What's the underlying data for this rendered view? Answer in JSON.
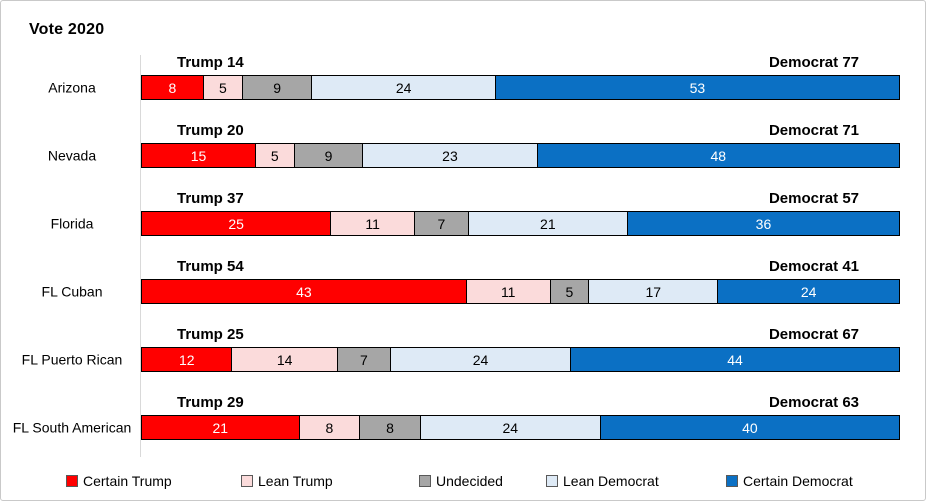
{
  "title": "Vote 2020",
  "colors": {
    "certain_trump": "#FF0000",
    "lean_trump": "#FBDBDB",
    "undecided": "#A6A6A6",
    "lean_democrat": "#DEEAF6",
    "certain_democrat": "#0B70C4",
    "segment_border": "#000000",
    "axis_line": "#D9D9D9",
    "canvas_border": "#C9C9C9"
  },
  "chart_data": {
    "type": "bar",
    "orientation": "horizontal-stacked",
    "title": "Vote 2020",
    "categories": [
      "Arizona",
      "Nevada",
      "Florida",
      "FL Cuban",
      "FL Puerto Rican",
      "FL South American"
    ],
    "series": [
      {
        "name": "Certain Trump",
        "color": "#FF0000",
        "text_color": "#FFFFFF",
        "values": [
          8,
          15,
          25,
          43,
          12,
          21
        ]
      },
      {
        "name": "Lean Trump",
        "color": "#FBDBDB",
        "text_color": "#000000",
        "values": [
          5,
          5,
          11,
          11,
          14,
          8
        ]
      },
      {
        "name": "Undecided",
        "color": "#A6A6A6",
        "text_color": "#000000",
        "values": [
          9,
          9,
          7,
          5,
          7,
          8
        ]
      },
      {
        "name": "Lean Democrat",
        "color": "#DEEAF6",
        "text_color": "#000000",
        "values": [
          24,
          23,
          21,
          17,
          24,
          24
        ]
      },
      {
        "name": "Certain Democrat",
        "color": "#0B70C4",
        "text_color": "#FFFFFF",
        "values": [
          53,
          48,
          36,
          24,
          44,
          40
        ]
      }
    ],
    "row_annotations": [
      {
        "left": "Trump 14",
        "right": "Democrat 77"
      },
      {
        "left": "Trump 20",
        "right": "Democrat 71"
      },
      {
        "left": "Trump 37",
        "right": "Democrat 57"
      },
      {
        "left": "Trump 54",
        "right": "Democrat 41"
      },
      {
        "left": "Trump 25",
        "right": "Democrat 67"
      },
      {
        "left": "Trump 29",
        "right": "Democrat 63"
      }
    ],
    "legend": [
      "Certain Trump",
      "Lean Trump",
      "Undecided",
      "Lean Democrat",
      "Certain Democrat"
    ],
    "legend_position": "bottom",
    "grid": false
  }
}
